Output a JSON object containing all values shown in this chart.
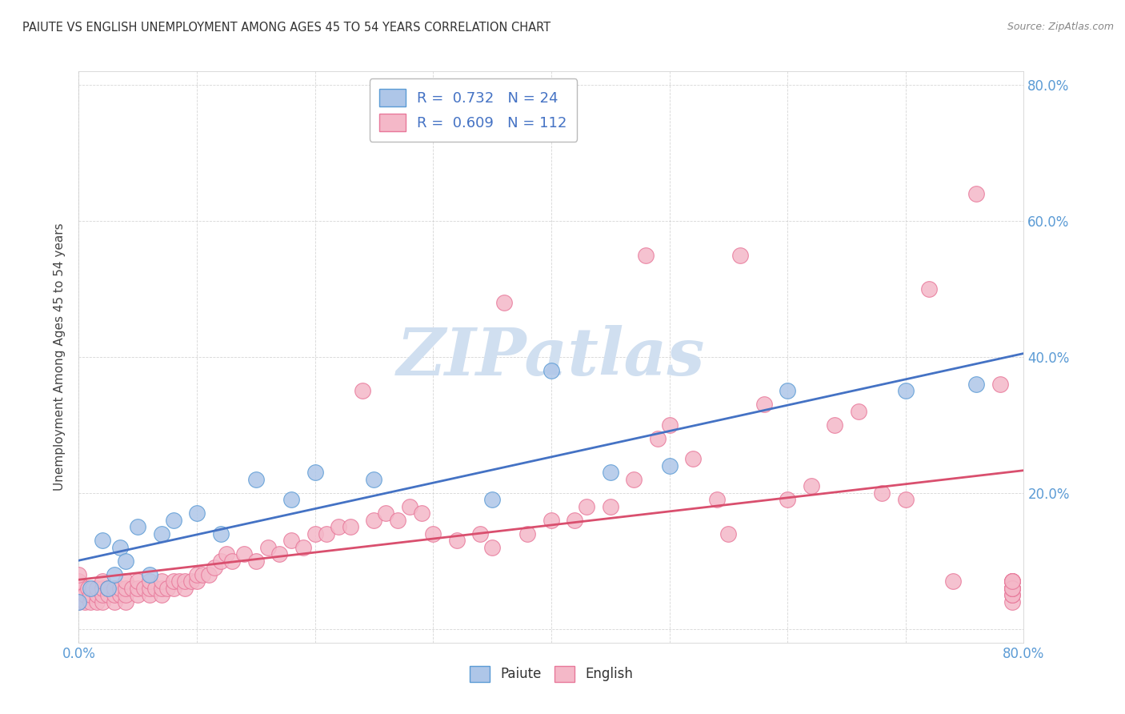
{
  "title": "PAIUTE VS ENGLISH UNEMPLOYMENT AMONG AGES 45 TO 54 YEARS CORRELATION CHART",
  "source": "Source: ZipAtlas.com",
  "ylabel": "Unemployment Among Ages 45 to 54 years",
  "xlim": [
    0.0,
    0.8
  ],
  "ylim": [
    -0.02,
    0.82
  ],
  "paiute_color": "#aec6e8",
  "paiute_edge_color": "#5b9bd5",
  "english_color": "#f4b8c8",
  "english_edge_color": "#e8789a",
  "paiute_line_color": "#4472c4",
  "english_line_color": "#d94f6e",
  "watermark_color": "#d0dff0",
  "legend_color": "#4472c4",
  "paiute_R": 0.732,
  "paiute_N": 24,
  "english_R": 0.609,
  "english_N": 112,
  "paiute_x": [
    0.0,
    0.01,
    0.02,
    0.025,
    0.03,
    0.035,
    0.04,
    0.05,
    0.06,
    0.07,
    0.08,
    0.1,
    0.12,
    0.15,
    0.18,
    0.2,
    0.25,
    0.35,
    0.4,
    0.45,
    0.5,
    0.6,
    0.7,
    0.76
  ],
  "paiute_y": [
    0.04,
    0.06,
    0.13,
    0.06,
    0.08,
    0.12,
    0.1,
    0.15,
    0.08,
    0.14,
    0.16,
    0.17,
    0.14,
    0.22,
    0.19,
    0.23,
    0.22,
    0.19,
    0.38,
    0.23,
    0.24,
    0.35,
    0.35,
    0.36
  ],
  "english_x": [
    0.0,
    0.0,
    0.0,
    0.0,
    0.0,
    0.005,
    0.005,
    0.008,
    0.01,
    0.01,
    0.012,
    0.015,
    0.015,
    0.015,
    0.02,
    0.02,
    0.02,
    0.02,
    0.025,
    0.025,
    0.03,
    0.03,
    0.03,
    0.035,
    0.035,
    0.04,
    0.04,
    0.04,
    0.04,
    0.045,
    0.05,
    0.05,
    0.05,
    0.055,
    0.06,
    0.06,
    0.06,
    0.065,
    0.07,
    0.07,
    0.07,
    0.075,
    0.08,
    0.08,
    0.085,
    0.09,
    0.09,
    0.095,
    0.1,
    0.1,
    0.105,
    0.11,
    0.115,
    0.12,
    0.125,
    0.13,
    0.14,
    0.15,
    0.16,
    0.17,
    0.18,
    0.19,
    0.2,
    0.21,
    0.22,
    0.23,
    0.24,
    0.25,
    0.26,
    0.27,
    0.28,
    0.29,
    0.3,
    0.32,
    0.34,
    0.35,
    0.36,
    0.38,
    0.4,
    0.42,
    0.43,
    0.45,
    0.47,
    0.48,
    0.49,
    0.5,
    0.52,
    0.54,
    0.55,
    0.56,
    0.58,
    0.6,
    0.62,
    0.64,
    0.66,
    0.68,
    0.7,
    0.72,
    0.74,
    0.76,
    0.78,
    0.79,
    0.79,
    0.79,
    0.79,
    0.79,
    0.79,
    0.79,
    0.79,
    0.79,
    0.79,
    0.79
  ],
  "english_y": [
    0.04,
    0.05,
    0.06,
    0.07,
    0.08,
    0.04,
    0.05,
    0.06,
    0.04,
    0.05,
    0.06,
    0.04,
    0.05,
    0.06,
    0.04,
    0.05,
    0.06,
    0.07,
    0.05,
    0.06,
    0.04,
    0.05,
    0.06,
    0.05,
    0.06,
    0.04,
    0.05,
    0.06,
    0.07,
    0.06,
    0.05,
    0.06,
    0.07,
    0.06,
    0.05,
    0.06,
    0.07,
    0.06,
    0.05,
    0.06,
    0.07,
    0.06,
    0.06,
    0.07,
    0.07,
    0.06,
    0.07,
    0.07,
    0.07,
    0.08,
    0.08,
    0.08,
    0.09,
    0.1,
    0.11,
    0.1,
    0.11,
    0.1,
    0.12,
    0.11,
    0.13,
    0.12,
    0.14,
    0.14,
    0.15,
    0.15,
    0.35,
    0.16,
    0.17,
    0.16,
    0.18,
    0.17,
    0.14,
    0.13,
    0.14,
    0.12,
    0.48,
    0.14,
    0.16,
    0.16,
    0.18,
    0.18,
    0.22,
    0.55,
    0.28,
    0.3,
    0.25,
    0.19,
    0.14,
    0.55,
    0.33,
    0.19,
    0.21,
    0.3,
    0.32,
    0.2,
    0.19,
    0.5,
    0.07,
    0.64,
    0.36,
    0.04,
    0.05,
    0.06,
    0.07,
    0.05,
    0.06,
    0.07,
    0.06,
    0.07,
    0.06,
    0.07
  ]
}
